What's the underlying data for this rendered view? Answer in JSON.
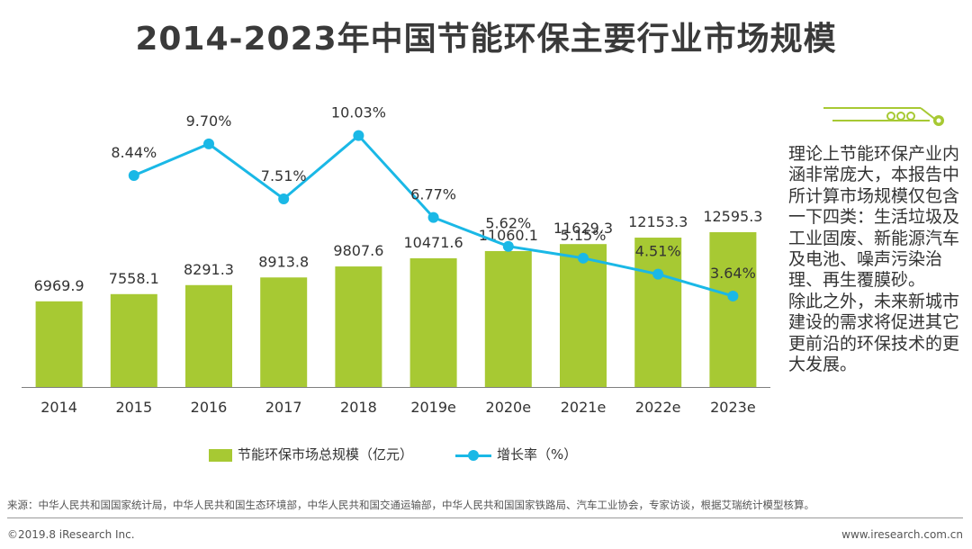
{
  "title": "2014-2023年中国节能环保主要行业市场规模",
  "chart_data": {
    "type": "bar+line",
    "categories": [
      "2014",
      "2015",
      "2016",
      "2017",
      "2018",
      "2019e",
      "2020e",
      "2021e",
      "2022e",
      "2023e"
    ],
    "series": [
      {
        "name": "节能环保市场总规模（亿元）",
        "type": "bar",
        "values": [
          6969.9,
          7558.1,
          8291.3,
          8913.8,
          9807.6,
          10471.6,
          11060.1,
          11629.3,
          12153.3,
          12595.3
        ],
        "labels": [
          "6969.9",
          "7558.1",
          "8291.3",
          "8913.8",
          "9807.6",
          "10471.6",
          "11060.1",
          "11629.3",
          "12153.3",
          "12595.3"
        ],
        "color": "#a7c933"
      },
      {
        "name": "增长率（%）",
        "type": "line",
        "values": [
          null,
          8.44,
          9.7,
          7.51,
          10.03,
          6.77,
          5.62,
          5.15,
          4.51,
          3.64
        ],
        "labels": [
          "",
          "8.44%",
          "9.70%",
          "7.51%",
          "10.03%",
          "6.77%",
          "5.62%",
          "5.15%",
          "4.51%",
          "3.64%"
        ],
        "color": "#1ab8e6"
      }
    ],
    "legend": [
      "节能环保市场总规模（亿元）",
      "增长率（%）"
    ]
  },
  "side_note": [
    "理论上节能环保产业内涵非常庞大，本报告中所计算市场规模仅包含一下四类：生活垃圾及工业固废、新能源汽车及电池、噪声污染治理、再生覆膜砂。",
    "除此之外，未来新城市建设的需求将促进其它更前沿的环保技术的更大发展。"
  ],
  "footer": {
    "source": "来源：中华人民共和国国家统计局，中华人民共和国生态环境部，中华人民共和国交通运输部，中华人民共和国国家铁路局、汽车工业协会，专家访谈，根据艾瑞统计模型核算。",
    "copyright": "©2019.8 iResearch Inc.",
    "website": "www.iresearch.com.cn"
  },
  "colors": {
    "bar": "#a7c933",
    "line": "#1ab8e6",
    "deco": "#a7c933",
    "axis": "#7f7f7f"
  }
}
